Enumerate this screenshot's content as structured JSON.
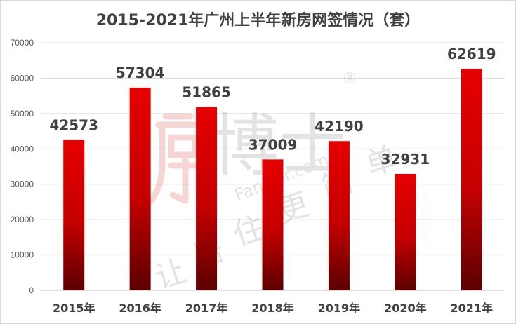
{
  "chart_data": {
    "type": "bar",
    "title": "2015-2021年广州上半年新房网签情况（套）",
    "categories": [
      "2015年",
      "2016年",
      "2017年",
      "2018年",
      "2019年",
      "2020年",
      "2021年"
    ],
    "values": [
      42573,
      57304,
      51865,
      37009,
      42190,
      32931,
      62619
    ],
    "data_labels": [
      "42573",
      "57304",
      "51865",
      "37009",
      "42190",
      "32931",
      "62619"
    ],
    "y_ticks": [
      "0",
      "10000",
      "20000",
      "30000",
      "40000",
      "50000",
      "60000",
      "70000"
    ],
    "ylim": [
      0,
      70000
    ],
    "grid": true,
    "legend": "none",
    "bar_color_top": "#e60000",
    "bar_color_bottom": "#5c0000"
  },
  "watermark": {
    "brand": "博士",
    "registered": "®",
    "site": "FangDr.com",
    "slogan": [
      "让",
      "居",
      "住",
      "更",
      "简",
      "单"
    ]
  }
}
